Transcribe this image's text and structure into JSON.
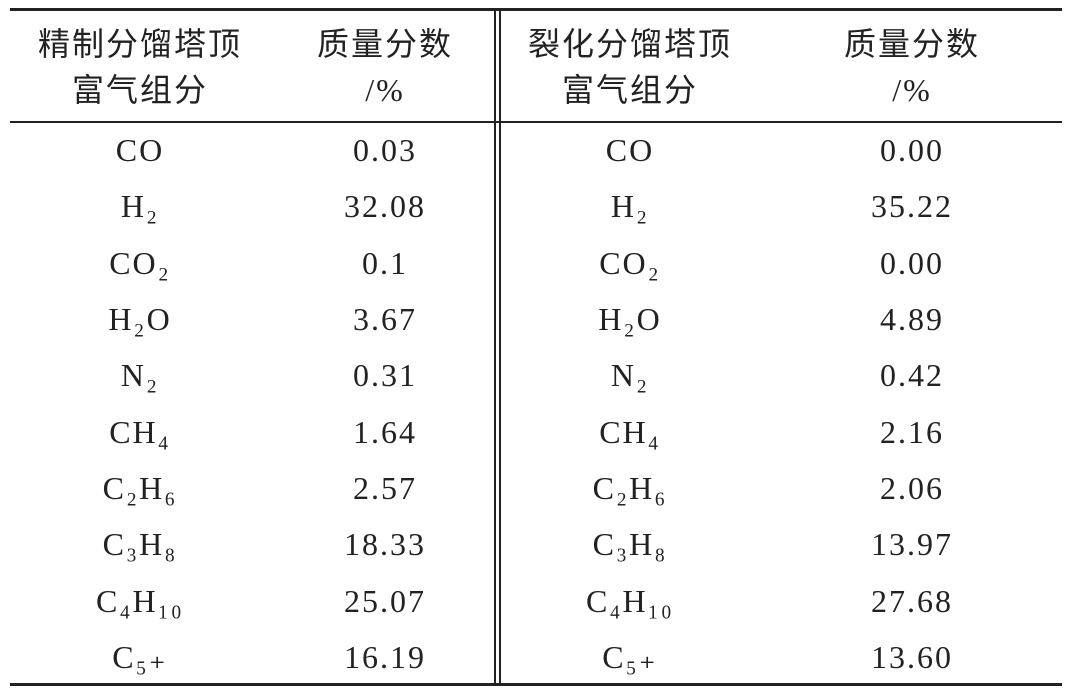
{
  "table": {
    "header": [
      [
        "精制分馏塔顶",
        "富气组分"
      ],
      [
        "质量分数",
        "/%"
      ],
      [
        "裂化分馏塔顶",
        "富气组分"
      ],
      [
        "质量分数",
        "/%"
      ]
    ],
    "rows": [
      [
        "CO",
        "0.03",
        "CO",
        "0.00"
      ],
      [
        "H₂",
        "32.08",
        "H₂",
        "35.22"
      ],
      [
        "CO₂",
        "0.1",
        "CO₂",
        "0.00"
      ],
      [
        "H₂O",
        "3.67",
        "H₂O",
        "4.89"
      ],
      [
        "N₂",
        "0.31",
        "N₂",
        "0.42"
      ],
      [
        "CH₄",
        "1.64",
        "CH₄",
        "2.16"
      ],
      [
        "C₂H₆",
        "2.57",
        "C₂H₆",
        "2.06"
      ],
      [
        "C₃H₈",
        "18.33",
        "C₃H₈",
        "13.97"
      ],
      [
        "C₄H₁₀",
        "25.07",
        "C₄H₁₀",
        "27.68"
      ],
      [
        "C₅₊",
        "16.19",
        "C₅₊",
        "13.60"
      ]
    ]
  }
}
